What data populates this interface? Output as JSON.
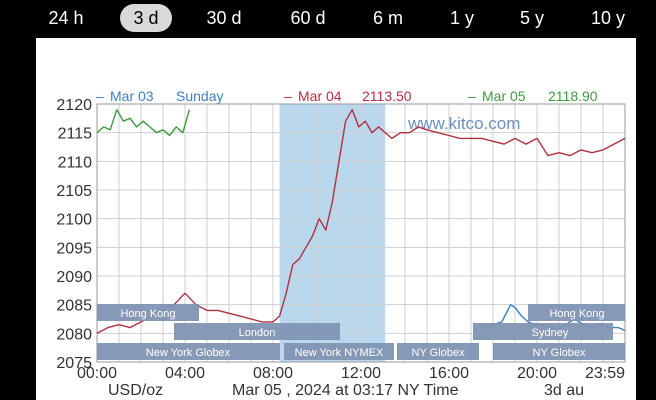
{
  "tabs": [
    {
      "label": "24 h",
      "active": false
    },
    {
      "label": "3 d",
      "active": true
    },
    {
      "label": "30 d",
      "active": false
    },
    {
      "label": "60 d",
      "active": false
    },
    {
      "label": "6 m",
      "active": false
    },
    {
      "label": "1 y",
      "active": false
    },
    {
      "label": "5 y",
      "active": false
    },
    {
      "label": "10 y",
      "active": false
    }
  ],
  "legend": [
    {
      "marker": "–",
      "date": "Mar 03",
      "value": "Sunday",
      "color": "#3a7fc4"
    },
    {
      "marker": "–",
      "date": "Mar 04",
      "value": "2113.50",
      "color": "#b03040"
    },
    {
      "marker": "–",
      "date": "Mar 05",
      "value": "2118.90",
      "color": "#3f9a3f"
    }
  ],
  "watermark": "www.kitco.com",
  "footer": {
    "unit": "USD/oz",
    "timestamp": "Mar 05 , 2024 at 03:17 NY Time",
    "range": "3d au"
  },
  "sessions": {
    "hong_kong_1": "Hong Kong",
    "hong_kong_2": "Hong Kong",
    "london": "London",
    "sydney": "Sydney",
    "ny_globex_1": "New York Globex",
    "ny_nymex": "New York NYMEX",
    "ny_globex_2": "NY Globex",
    "ny_globex_3": "NY Globex"
  },
  "colors": {
    "session_bar": "#7f93b3",
    "highlight": "#b9d8ee",
    "grid": "#cfcfcf",
    "watermark": "#6a8fc0"
  },
  "chart_data": {
    "type": "line",
    "ylim": [
      2075,
      2120
    ],
    "xlim": [
      0,
      24
    ],
    "y_ticks": [
      "2075",
      "2080",
      "2085",
      "2090",
      "2095",
      "2100",
      "2105",
      "2110",
      "2115",
      "2120"
    ],
    "x_ticks": [
      {
        "label": "00:00",
        "x": 0
      },
      {
        "label": "04:00",
        "x": 4
      },
      {
        "label": "08:00",
        "x": 8
      },
      {
        "label": "12:00",
        "x": 12
      },
      {
        "label": "16:00",
        "x": 16
      },
      {
        "label": "20:00",
        "x": 20
      },
      {
        "label": "23:59",
        "x": 23.98
      }
    ],
    "highlight_range": [
      8.3,
      13.1
    ],
    "series": [
      {
        "name": "Mar 03",
        "color": "#3a7fc4",
        "x": [
          17.6,
          18.0,
          18.4,
          18.8,
          19.0,
          19.3,
          19.6,
          19.9,
          20.2,
          20.5,
          20.9,
          21.3,
          21.7,
          22.1,
          22.5,
          22.9,
          23.3,
          23.7,
          24.0
        ],
        "y": [
          2081,
          2081.5,
          2082,
          2085,
          2084.5,
          2083,
          2082,
          2081.5,
          2081.5,
          2081,
          2080.5,
          2081.5,
          2082.5,
          2081.5,
          2081,
          2081.5,
          2081,
          2081,
          2080.5
        ]
      },
      {
        "name": "Mar 04",
        "color": "#b03040",
        "x": [
          0,
          0.5,
          1,
          1.5,
          2,
          2.5,
          3,
          3.5,
          4,
          4.5,
          5,
          5.5,
          6,
          6.5,
          7,
          7.5,
          8,
          8.3,
          8.6,
          8.9,
          9.2,
          9.5,
          9.8,
          10.1,
          10.4,
          10.7,
          11.0,
          11.3,
          11.6,
          11.9,
          12.2,
          12.5,
          12.8,
          13.1,
          13.4,
          13.8,
          14.2,
          14.6,
          15.0,
          15.5,
          16.0,
          16.5,
          17.0,
          17.5,
          18.0,
          18.5,
          19.0,
          19.5,
          20.0,
          20.5,
          21.0,
          21.5,
          22.0,
          22.5,
          23.0,
          23.5,
          24.0
        ],
        "y": [
          2080,
          2081,
          2081.5,
          2081,
          2082,
          2083,
          2084,
          2085,
          2087,
          2085,
          2084,
          2084,
          2083.5,
          2083,
          2082.5,
          2082,
          2082,
          2083,
          2087,
          2092,
          2093,
          2095,
          2097,
          2100,
          2098,
          2103,
          2110,
          2117,
          2119,
          2116,
          2117,
          2115,
          2116,
          2115,
          2114,
          2115,
          2115,
          2116,
          2115.5,
          2115,
          2114.5,
          2114,
          2114,
          2114,
          2113.5,
          2113,
          2114,
          2113,
          2114,
          2111,
          2111.5,
          2111,
          2112,
          2111.5,
          2112,
          2113,
          2114
        ]
      },
      {
        "name": "Mar 05",
        "color": "#3f9a3f",
        "x": [
          0,
          0.3,
          0.6,
          0.9,
          1.2,
          1.5,
          1.8,
          2.1,
          2.4,
          2.7,
          3.0,
          3.3,
          3.6,
          3.9,
          4.2
        ],
        "y": [
          2115,
          2116,
          2115.5,
          2119,
          2117,
          2117.5,
          2116,
          2117,
          2116,
          2115,
          2115.5,
          2114.5,
          2116,
          2115,
          2119
        ]
      }
    ]
  }
}
